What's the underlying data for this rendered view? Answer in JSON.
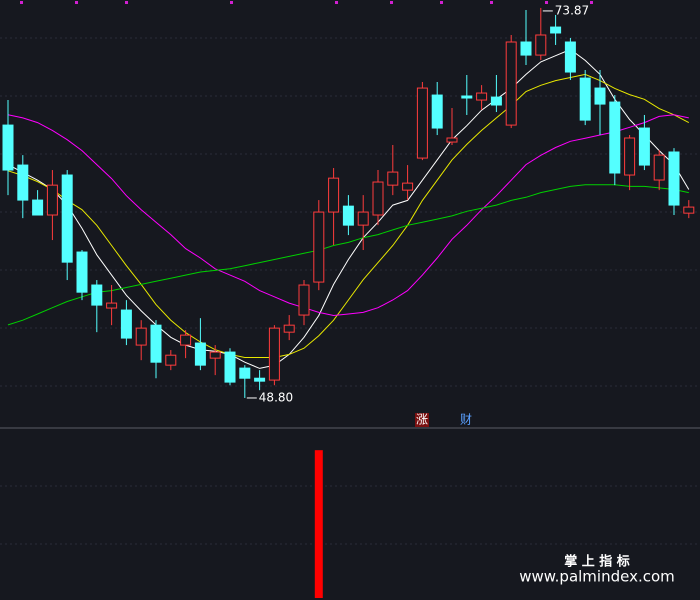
{
  "chart_data": {
    "type": "candlestick",
    "up_color": "#ff3c3c",
    "down_color": "#54ffff",
    "ylim": [
      48.22,
      74.38
    ],
    "candles": {
      "open": [
        66.34,
        63.77,
        61.52,
        60.56,
        63.13,
        58.18,
        56.06,
        54.58,
        54.45,
        52.2,
        53.48,
        50.91,
        52.2,
        52.33,
        51.36,
        51.75,
        50.72,
        50.07,
        49.95,
        53.03,
        54.13,
        56.25,
        60.75,
        61.13,
        59.91,
        60.56,
        62.48,
        62.16,
        64.22,
        68.27,
        65.25,
        68.21,
        67.95,
        68.14,
        66.34,
        71.68,
        70.84,
        72.64,
        71.68,
        69.36,
        68.72,
        67.82,
        63.13,
        66.15,
        62.81,
        64.61,
        60.68
      ],
      "high": [
        67.95,
        64.41,
        62.16,
        63.45,
        63.45,
        58.31,
        56.38,
        56.06,
        55.09,
        53.8,
        53.8,
        51.88,
        53.16,
        53.93,
        52.2,
        52.0,
        50.91,
        50.59,
        53.48,
        54.13,
        56.38,
        61.52,
        63.58,
        61.84,
        61.84,
        63.45,
        65.06,
        63.77,
        69.11,
        69.11,
        67.44,
        69.56,
        68.91,
        69.56,
        72.13,
        73.74,
        73.87,
        73.42,
        71.94,
        69.88,
        69.88,
        68.27,
        65.7,
        66.99,
        64.74,
        64.86,
        61.52
      ],
      "low": [
        61.84,
        60.36,
        60.56,
        58.95,
        56.38,
        55.09,
        53.03,
        53.48,
        52.2,
        51.23,
        50.07,
        50.59,
        51.36,
        50.59,
        50.27,
        49.62,
        48.8,
        49.3,
        49.62,
        52.52,
        53.48,
        55.73,
        58.63,
        59.27,
        58.31,
        59.91,
        61.84,
        61.52,
        64.09,
        65.7,
        65.06,
        66.99,
        67.31,
        67.18,
        66.15,
        70.2,
        70.52,
        71.49,
        69.24,
        66.34,
        65.7,
        62.48,
        62.16,
        63.45,
        62.16,
        60.56,
        60.36
      ],
      "close": [
        63.45,
        61.52,
        60.56,
        62.48,
        57.53,
        55.6,
        54.77,
        54.9,
        52.65,
        53.29,
        51.1,
        51.55,
        52.84,
        50.91,
        51.75,
        49.82,
        50.07,
        49.88,
        53.29,
        53.48,
        56.06,
        60.75,
        62.93,
        59.91,
        60.75,
        62.68,
        63.32,
        62.61,
        68.72,
        66.15,
        65.51,
        68.08,
        68.4,
        67.63,
        71.68,
        70.84,
        72.13,
        72.26,
        69.75,
        66.66,
        67.69,
        63.26,
        65.51,
        63.77,
        64.41,
        61.2,
        61.07
      ]
    },
    "series": [
      {
        "color": "#ffffff",
        "values": [
          63.8,
          63.3,
          62.8,
          62.2,
          61.2,
          59.7,
          58.0,
          56.7,
          55.4,
          54.4,
          53.5,
          52.7,
          52.2,
          51.9,
          51.8,
          51.6,
          51.1,
          50.7,
          50.9,
          51.6,
          52.7,
          54.1,
          56.1,
          57.7,
          59.1,
          60.1,
          61.2,
          61.5,
          62.8,
          64.1,
          65.4,
          66.3,
          67.3,
          68.0,
          68.7,
          69.6,
          70.4,
          70.8,
          71.2,
          70.5,
          69.6,
          68.0,
          66.7,
          65.7,
          64.7,
          63.8,
          62.2
        ]
      },
      {
        "color": "#e8e800",
        "values": [
          63.4,
          63.1,
          62.7,
          62.2,
          61.5,
          60.9,
          59.9,
          58.6,
          57.3,
          56.1,
          54.8,
          53.8,
          53.0,
          52.4,
          51.9,
          51.6,
          51.4,
          51.4,
          51.4,
          51.6,
          52.0,
          52.8,
          53.8,
          55.1,
          56.4,
          57.5,
          58.6,
          59.9,
          61.5,
          62.8,
          64.1,
          65.1,
          66.0,
          66.8,
          67.6,
          68.5,
          68.9,
          69.2,
          69.4,
          69.6,
          69.2,
          68.7,
          68.3,
          68.0,
          67.4,
          67.0,
          66.5
        ]
      },
      {
        "color": "#ff00ff",
        "values": [
          67.0,
          66.8,
          66.5,
          66.0,
          65.4,
          64.7,
          63.8,
          62.9,
          61.8,
          60.9,
          60.1,
          59.3,
          58.4,
          57.8,
          57.1,
          56.7,
          56.3,
          55.7,
          55.3,
          54.9,
          54.6,
          54.3,
          54.1,
          54.2,
          54.3,
          54.6,
          55.1,
          55.7,
          56.7,
          57.8,
          59.0,
          59.9,
          60.9,
          61.8,
          62.8,
          63.8,
          64.4,
          64.9,
          65.3,
          65.5,
          65.7,
          65.9,
          66.2,
          66.5,
          66.9,
          67.0,
          66.8
        ]
      },
      {
        "color": "#00d000",
        "values": [
          53.5,
          53.8,
          54.2,
          54.6,
          55.0,
          55.3,
          55.6,
          55.7,
          55.9,
          56.1,
          56.3,
          56.5,
          56.7,
          56.9,
          57.0,
          57.1,
          57.3,
          57.5,
          57.7,
          57.9,
          58.1,
          58.3,
          58.6,
          58.8,
          59.1,
          59.3,
          59.6,
          59.9,
          60.1,
          60.3,
          60.5,
          60.8,
          61.0,
          61.2,
          61.5,
          61.7,
          62.0,
          62.2,
          62.4,
          62.5,
          62.5,
          62.5,
          62.4,
          62.4,
          62.3,
          62.2,
          62.0
        ]
      }
    ],
    "max_label": "73.87",
    "min_label": "48.80",
    "tags": [
      "涨",
      "财"
    ],
    "indicator": {
      "color": "#ff0000",
      "ylim": [
        0,
        1.15
      ],
      "values": [
        null,
        null,
        null,
        null,
        null,
        null,
        null,
        null,
        null,
        null,
        null,
        null,
        null,
        null,
        null,
        null,
        null,
        null,
        null,
        null,
        null,
        1,
        null,
        null,
        null,
        null,
        null,
        null,
        null,
        null,
        null,
        null,
        null,
        null,
        null,
        null,
        null,
        null,
        null,
        null,
        null,
        null,
        null,
        null,
        null,
        null,
        null
      ]
    },
    "watermark": [
      "掌 上 指 标",
      "www.palmindex.com"
    ]
  }
}
